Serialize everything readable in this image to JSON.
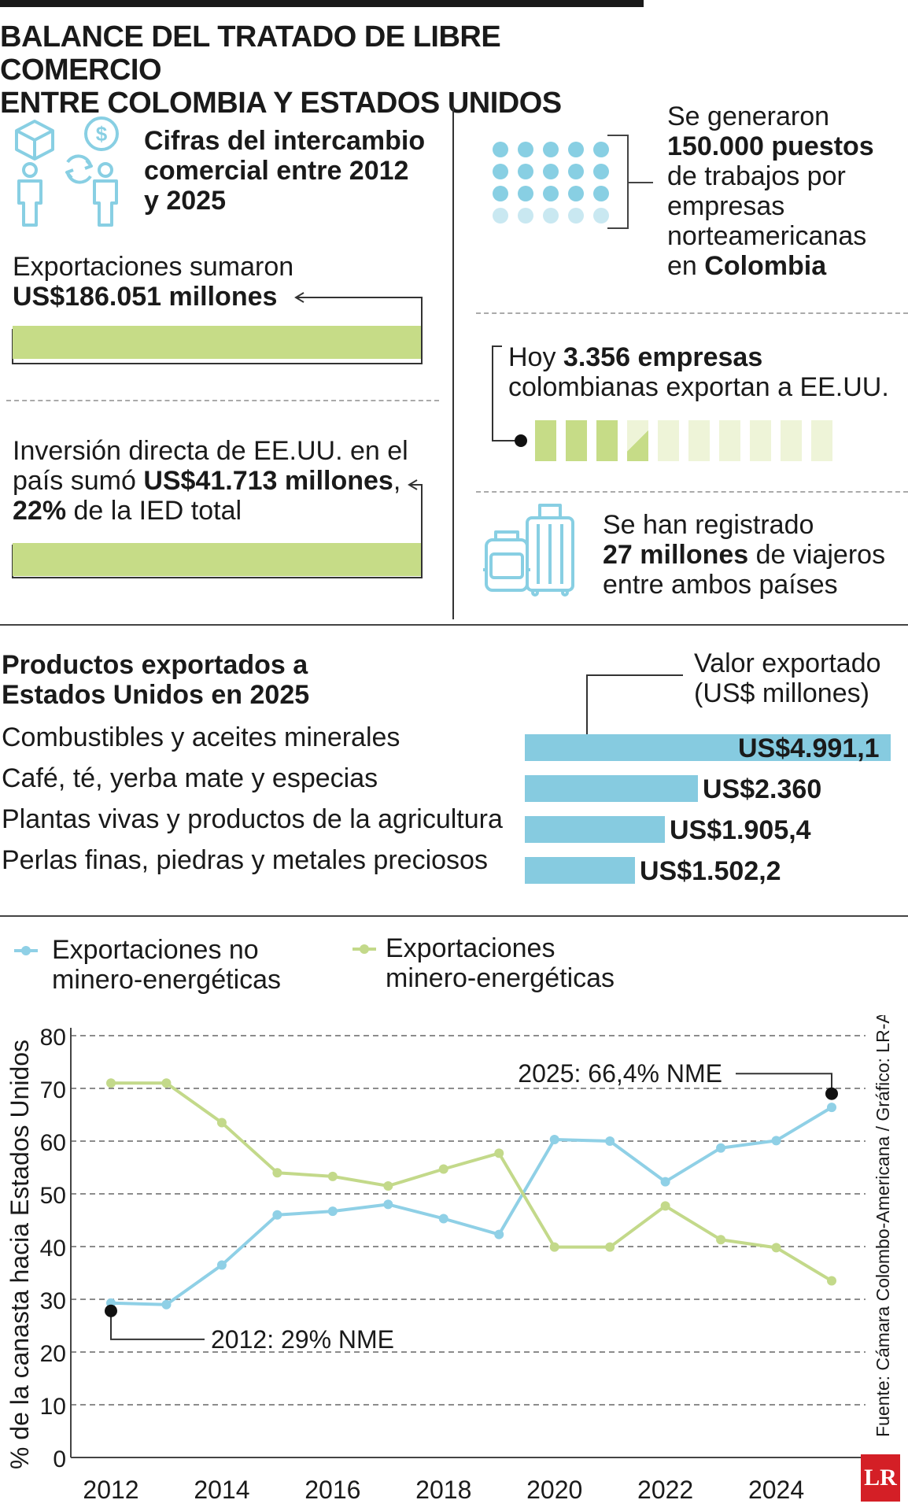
{
  "header": {
    "title_line1": "BALANCE DEL TRATADO DE LIBRE COMERCIO",
    "title_line2": "ENTRE COLOMBIA Y ESTADOS UNIDOS"
  },
  "left_panel": {
    "subtitle_l1": "Cifras del intercambio",
    "subtitle_l2": "comercial entre 2012",
    "subtitle_l3": "y 2025",
    "exports_label": "Exportaciones sumaron",
    "exports_value": "US$186.051 millones",
    "investment_l1": "Inversión directa de EE.UU. en el",
    "investment_l2_pre": "país sumó ",
    "investment_l2_bold": "US$41.713 millones",
    "investment_l2_post": ",",
    "investment_l3_bold": "22%",
    "investment_l3_post": " de la IED total"
  },
  "right_panel": {
    "jobs_l1": "Se generaron",
    "jobs_l2": "150.000 puestos",
    "jobs_l3": "de trabajos por",
    "jobs_l4": "empresas",
    "jobs_l5": "norteamericanas",
    "jobs_l6_pre": "en ",
    "jobs_l6_bold": "Colombia",
    "companies_pre": "Hoy ",
    "companies_bold": "3.356 empresas",
    "companies_l2": "colombianas exportan a EE.UU.",
    "travel_l1": "Se han registrado",
    "travel_l2_bold": "27 millones",
    "travel_l2_post": " de viajeros",
    "travel_l3": "entre ambos países"
  },
  "products": {
    "title_l1": "Productos exportados a",
    "title_l2": "Estados Unidos en 2025",
    "value_header_l1": "Valor exportado",
    "value_header_l2": "(US$ millones)",
    "items": [
      {
        "label": "Combustibles y aceites minerales",
        "value": 4991.1,
        "value_label": "US$4.991,1"
      },
      {
        "label": "Café, té, yerba mate y especias",
        "value": 2360,
        "value_label": "US$2.360"
      },
      {
        "label": "Plantas vivas y productos de la agricultura",
        "value": 1905.4,
        "value_label": "US$1.905,4"
      },
      {
        "label": "Perlas finas, piedras y metales preciosos",
        "value": 1502.2,
        "value_label": "US$1.502,2"
      }
    ]
  },
  "colors": {
    "blue": "#88cfe3",
    "green": "#c6dc87",
    "bar_blue": "#86cbe0",
    "line_blue": "#8fd0e6",
    "line_green": "#c3d98a"
  },
  "icons": [
    "box-icon",
    "dollar-coin-icon",
    "exchange-arrows-icon",
    "person-icon",
    "luggage-icon",
    "lr-logo-icon"
  ],
  "chart_data": {
    "type": "line",
    "ylabel": "% de la canasta hacia Estados Unidos",
    "xlabel": "",
    "ylim": [
      0,
      80
    ],
    "yticks": [
      0,
      10,
      20,
      30,
      40,
      50,
      60,
      70,
      80
    ],
    "xticks": [
      2012,
      2014,
      2016,
      2018,
      2020,
      2022,
      2024
    ],
    "x": [
      2012,
      2013,
      2014,
      2015,
      2016,
      2017,
      2018,
      2019,
      2020,
      2021,
      2022,
      2023,
      2024,
      2025
    ],
    "grid": true,
    "legend_position": "top",
    "series": [
      {
        "name": "Exportaciones no minero-energéticas",
        "color": "#8fd0e6",
        "values": [
          29.3,
          29.0,
          36.5,
          46.0,
          46.7,
          48.0,
          45.3,
          42.3,
          60.3,
          60.0,
          52.3,
          58.7,
          60.1,
          66.4
        ]
      },
      {
        "name": "Exportaciones minero-energéticas",
        "color": "#c3d98a",
        "values": [
          71.0,
          71.0,
          63.5,
          54.0,
          53.3,
          51.5,
          54.7,
          57.7,
          39.9,
          39.9,
          47.7,
          41.3,
          39.8,
          33.5
        ]
      }
    ],
    "legend_l1_blue": "Exportaciones no",
    "legend_l2_blue": "minero-energéticas",
    "legend_l1_green": "Exportaciones",
    "legend_l2_green": "minero-energéticas",
    "annotation_2025": "2025: 66,4% NME",
    "annotation_2012": "2012: 29% NME",
    "source": "Fuente: Cámara Colombo-Americana / Gráfico: LR-AA",
    "logo": "LR"
  }
}
